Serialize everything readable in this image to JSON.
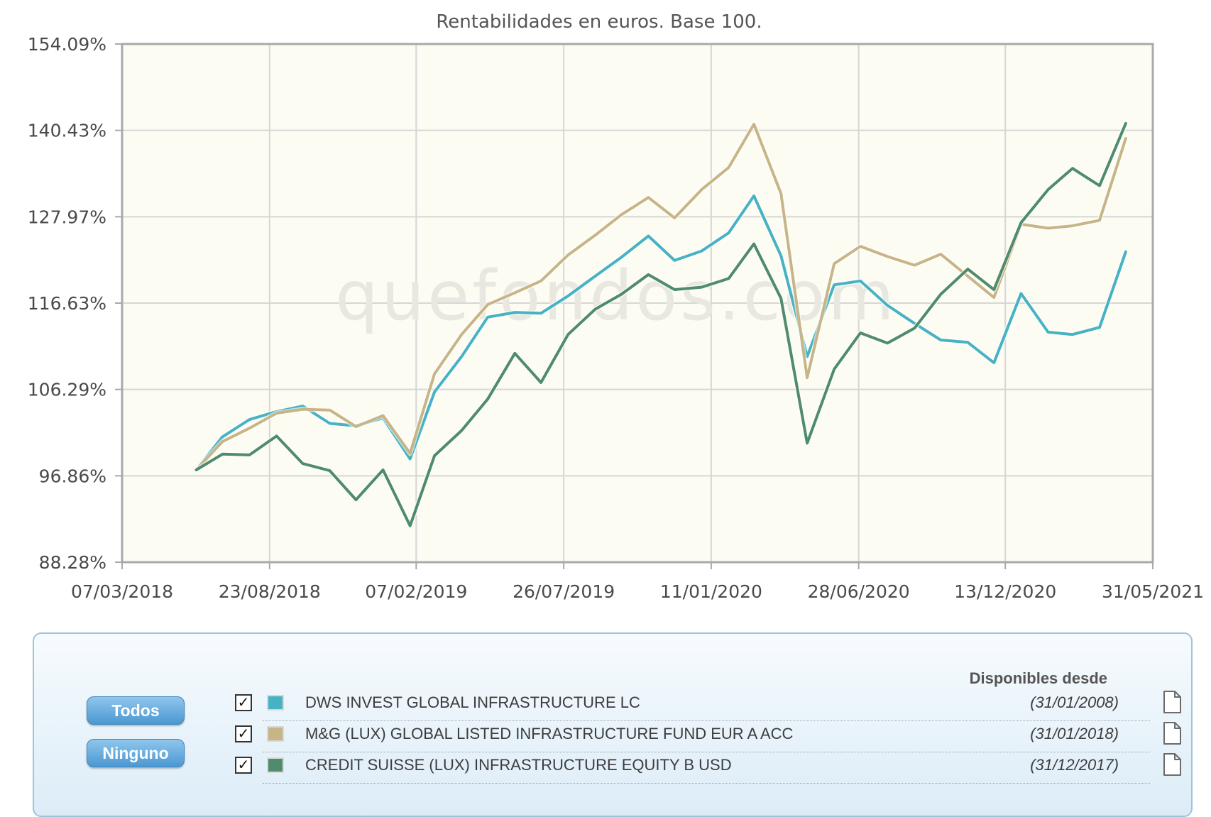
{
  "chart_data": {
    "type": "line",
    "title": "Rentabilidades en euros. Base 100.",
    "xlabel": "",
    "ylabel": "",
    "x_tick_labels": [
      "07/03/2018",
      "23/08/2018",
      "07/02/2019",
      "26/07/2019",
      "11/01/2020",
      "28/06/2020",
      "13/12/2020",
      "31/05/2021"
    ],
    "x_range": [
      "2018-03-07",
      "2021-05-31"
    ],
    "y_tick_labels": [
      "154.09%",
      "140.43%",
      "127.97%",
      "116.63%",
      "106.29%",
      "96.86%",
      "88.28%"
    ],
    "ylim": [
      88.28,
      154.09
    ],
    "grid": true,
    "x": [
      "2018-05-31",
      "2018-06-30",
      "2018-07-31",
      "2018-08-31",
      "2018-09-30",
      "2018-10-31",
      "2018-11-30",
      "2018-12-31",
      "2019-01-31",
      "2019-02-28",
      "2019-03-31",
      "2019-04-30",
      "2019-05-31",
      "2019-06-30",
      "2019-07-31",
      "2019-08-31",
      "2019-09-30",
      "2019-10-31",
      "2019-11-30",
      "2019-12-31",
      "2020-01-31",
      "2020-02-29",
      "2020-03-31",
      "2020-04-30",
      "2020-05-31",
      "2020-06-30",
      "2020-07-31",
      "2020-08-31",
      "2020-09-30",
      "2020-10-31",
      "2020-11-30",
      "2020-12-31",
      "2021-01-31",
      "2021-02-28",
      "2021-03-31",
      "2021-04-30"
    ],
    "series": [
      {
        "name": "DWS INVEST GLOBAL INFRASTRUCTURE LC",
        "color": "#47b2c3",
        "values": [
          100.0,
          104.2,
          106.4,
          107.4,
          108.1,
          105.9,
          105.6,
          106.6,
          101.4,
          109.9,
          114.4,
          119.4,
          120.0,
          119.9,
          122.1,
          124.6,
          127.0,
          129.7,
          126.6,
          127.8,
          130.1,
          134.8,
          127.2,
          114.4,
          123.5,
          124.0,
          120.9,
          118.6,
          116.5,
          116.2,
          113.6,
          122.4,
          117.5,
          117.2,
          118.1,
          127.7
        ]
      },
      {
        "name": "M&G (LUX) GLOBAL LISTED INFRASTRUCTURE FUND EUR A ACC",
        "color": "#c7b587",
        "values": [
          100.0,
          103.6,
          105.3,
          107.2,
          107.7,
          107.6,
          105.5,
          106.9,
          102.1,
          112.2,
          117.2,
          121.0,
          122.5,
          124.0,
          127.3,
          129.8,
          132.4,
          134.6,
          132.0,
          135.6,
          138.4,
          143.9,
          135.1,
          111.7,
          126.2,
          128.4,
          127.1,
          126.0,
          127.4,
          124.6,
          121.9,
          131.2,
          130.7,
          131.0,
          131.7,
          142.1
        ]
      },
      {
        "name": "CREDIT SUISSE (LUX) INFRASTRUCTURE EQUITY B USD",
        "color": "#4f8b6c",
        "values": [
          100.0,
          102.0,
          101.9,
          104.3,
          100.8,
          99.9,
          96.2,
          100.0,
          92.9,
          101.8,
          105.0,
          109.0,
          114.8,
          111.1,
          117.2,
          120.4,
          122.3,
          124.8,
          122.9,
          123.2,
          124.3,
          128.7,
          121.8,
          103.4,
          112.8,
          117.4,
          116.1,
          118.0,
          122.3,
          125.5,
          122.9,
          131.4,
          135.6,
          138.3,
          136.1,
          144.0
        ]
      }
    ]
  },
  "watermark": "quefondos.com",
  "legend": {
    "available_since_header": "Disponibles desde",
    "buttons": {
      "all": "Todos",
      "none": "Ninguno"
    },
    "check_glyph": "✓",
    "funds": [
      {
        "name": "DWS INVEST GLOBAL INFRASTRUCTURE LC",
        "since": "(31/01/2008)",
        "color": "#47b2c3",
        "checked": true,
        "icon": "document-icon"
      },
      {
        "name": "M&G (LUX) GLOBAL LISTED INFRASTRUCTURE FUND EUR A ACC",
        "since": "(31/01/2018)",
        "color": "#c7b587",
        "checked": true,
        "icon": "document-icon"
      },
      {
        "name": "CREDIT SUISSE (LUX) INFRASTRUCTURE EQUITY B USD",
        "since": "(31/12/2017)",
        "color": "#4f8b6c",
        "checked": true,
        "icon": "document-icon"
      }
    ]
  }
}
